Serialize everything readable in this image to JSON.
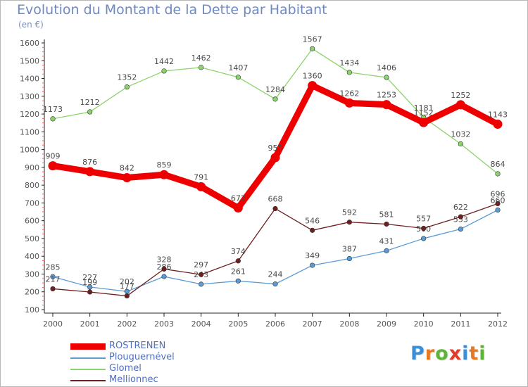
{
  "header": {
    "title": "Evolution du Montant de la Dette par Habitant",
    "subtitle": "(en €)"
  },
  "brand": {
    "letters": [
      "P",
      "r",
      "o",
      "x",
      "i",
      "t",
      "i"
    ],
    "colors": [
      "#3b8fd8",
      "#e9781f",
      "#5fb336",
      "#e03a2a",
      "#3b8fd8",
      "#e9781f",
      "#5fb336"
    ]
  },
  "chart_data": {
    "type": "line",
    "x": [
      "2000",
      "2001",
      "2002",
      "2003",
      "2004",
      "2005",
      "2006",
      "2007",
      "2008",
      "2009",
      "2010",
      "2011",
      "2012"
    ],
    "ylim": [
      100,
      1600
    ],
    "yticks": [
      100,
      200,
      300,
      400,
      500,
      600,
      700,
      800,
      900,
      1000,
      1100,
      1200,
      1300,
      1400,
      1500,
      1600
    ],
    "grid": false,
    "legend": "bottom-left",
    "series": [
      {
        "name": "ROSTRENEN",
        "color": "#ee0000",
        "values": [
          909,
          876,
          842,
          859,
          791,
          672,
          955,
          1360,
          1262,
          1253,
          1152,
          1252,
          1143
        ]
      },
      {
        "name": "Plouguernével",
        "color": "#5b9bd5",
        "values": [
          285,
          227,
          202,
          286,
          243,
          261,
          244,
          349,
          387,
          431,
          500,
          553,
          660
        ]
      },
      {
        "name": "Glomel",
        "color": "#8bd36b",
        "values": [
          1173,
          1212,
          1352,
          1442,
          1462,
          1407,
          1284,
          1567,
          1434,
          1406,
          1181,
          1032,
          864
        ]
      },
      {
        "name": "Mellionnec",
        "color": "#6e1f1f",
        "values": [
          217,
          199,
          177,
          328,
          297,
          374,
          668,
          546,
          592,
          581,
          557,
          622,
          696
        ]
      }
    ]
  }
}
